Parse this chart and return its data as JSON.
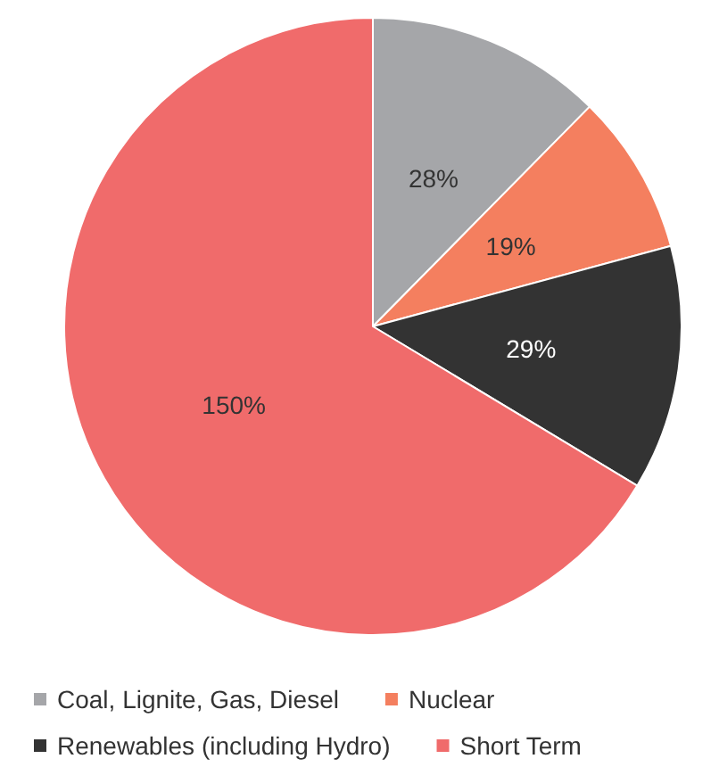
{
  "chart_data": {
    "type": "pie",
    "categories": [
      "Coal, Lignite, Gas, Diesel",
      "Nuclear",
      "Renewables (including Hydro)",
      "Short Term"
    ],
    "values": [
      28,
      19,
      29,
      150
    ],
    "value_labels": [
      "28%",
      "19%",
      "29%",
      "150%"
    ],
    "colors": [
      "#a5a6a9",
      "#f47f5f",
      "#333333",
      "#f06b6b"
    ],
    "legend": "bottom"
  }
}
